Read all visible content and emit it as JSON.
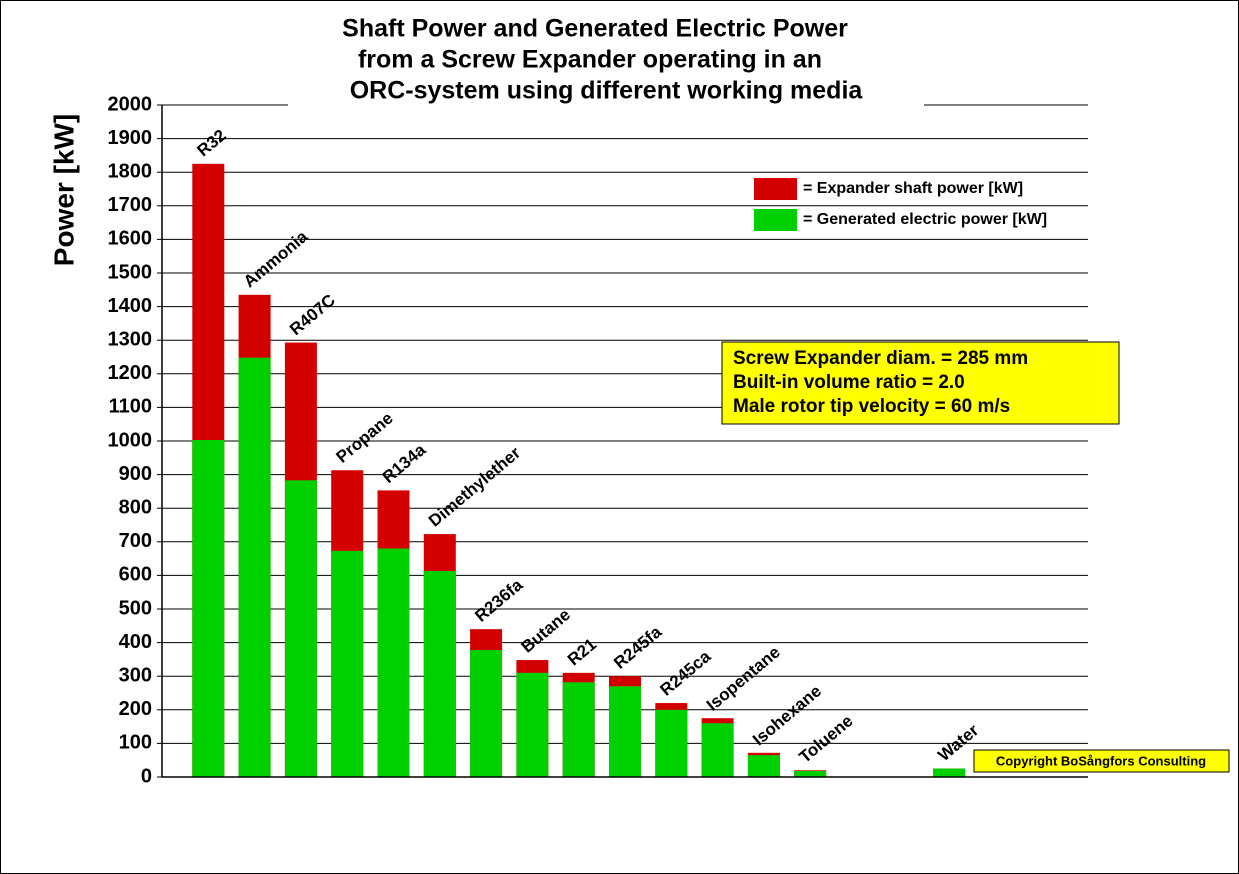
{
  "chart_data": {
    "type": "bar",
    "title_lines": [
      "Shaft Power and Generated Electric Power",
      "from a Screw Expander operating in an",
      "ORC-system using different working media"
    ],
    "y_label": "Power [kW]",
    "categories": [
      "R32",
      "Ammonia",
      "R407C",
      "Propane",
      "R134a",
      "Dimethylether",
      "R236fa",
      "Butane",
      "R21",
      "R245fa",
      "R245ca",
      "Isopentane",
      "Isohexane",
      "Toluene",
      null,
      null,
      "Water"
    ],
    "series": [
      {
        "name": "= Expander shaft power [kW]",
        "color": "#d40000",
        "values": [
          1825,
          1435,
          1293,
          913,
          853,
          723,
          440,
          348,
          310,
          300,
          220,
          175,
          72,
          20,
          null,
          null,
          25
        ]
      },
      {
        "name": "= Generated electric power [kW]",
        "color": "#00d000",
        "values": [
          1003,
          1248,
          883,
          673,
          680,
          613,
          378,
          310,
          282,
          270,
          200,
          160,
          65,
          18,
          null,
          null,
          25
        ]
      }
    ],
    "ylim": [
      0,
      2000
    ],
    "yticks": [
      0,
      100,
      200,
      300,
      400,
      500,
      600,
      700,
      800,
      900,
      1000,
      1100,
      1200,
      1300,
      1400,
      1500,
      1600,
      1700,
      1800,
      1900,
      2000
    ],
    "grid": true,
    "annotation_lines": [
      "Screw Expander diam. = 285 mm",
      "Built-in volume ratio = 2.0",
      "Male rotor tip velocity = 60 m/s"
    ],
    "copyright": "Copyright BoSångfors Consulting"
  }
}
